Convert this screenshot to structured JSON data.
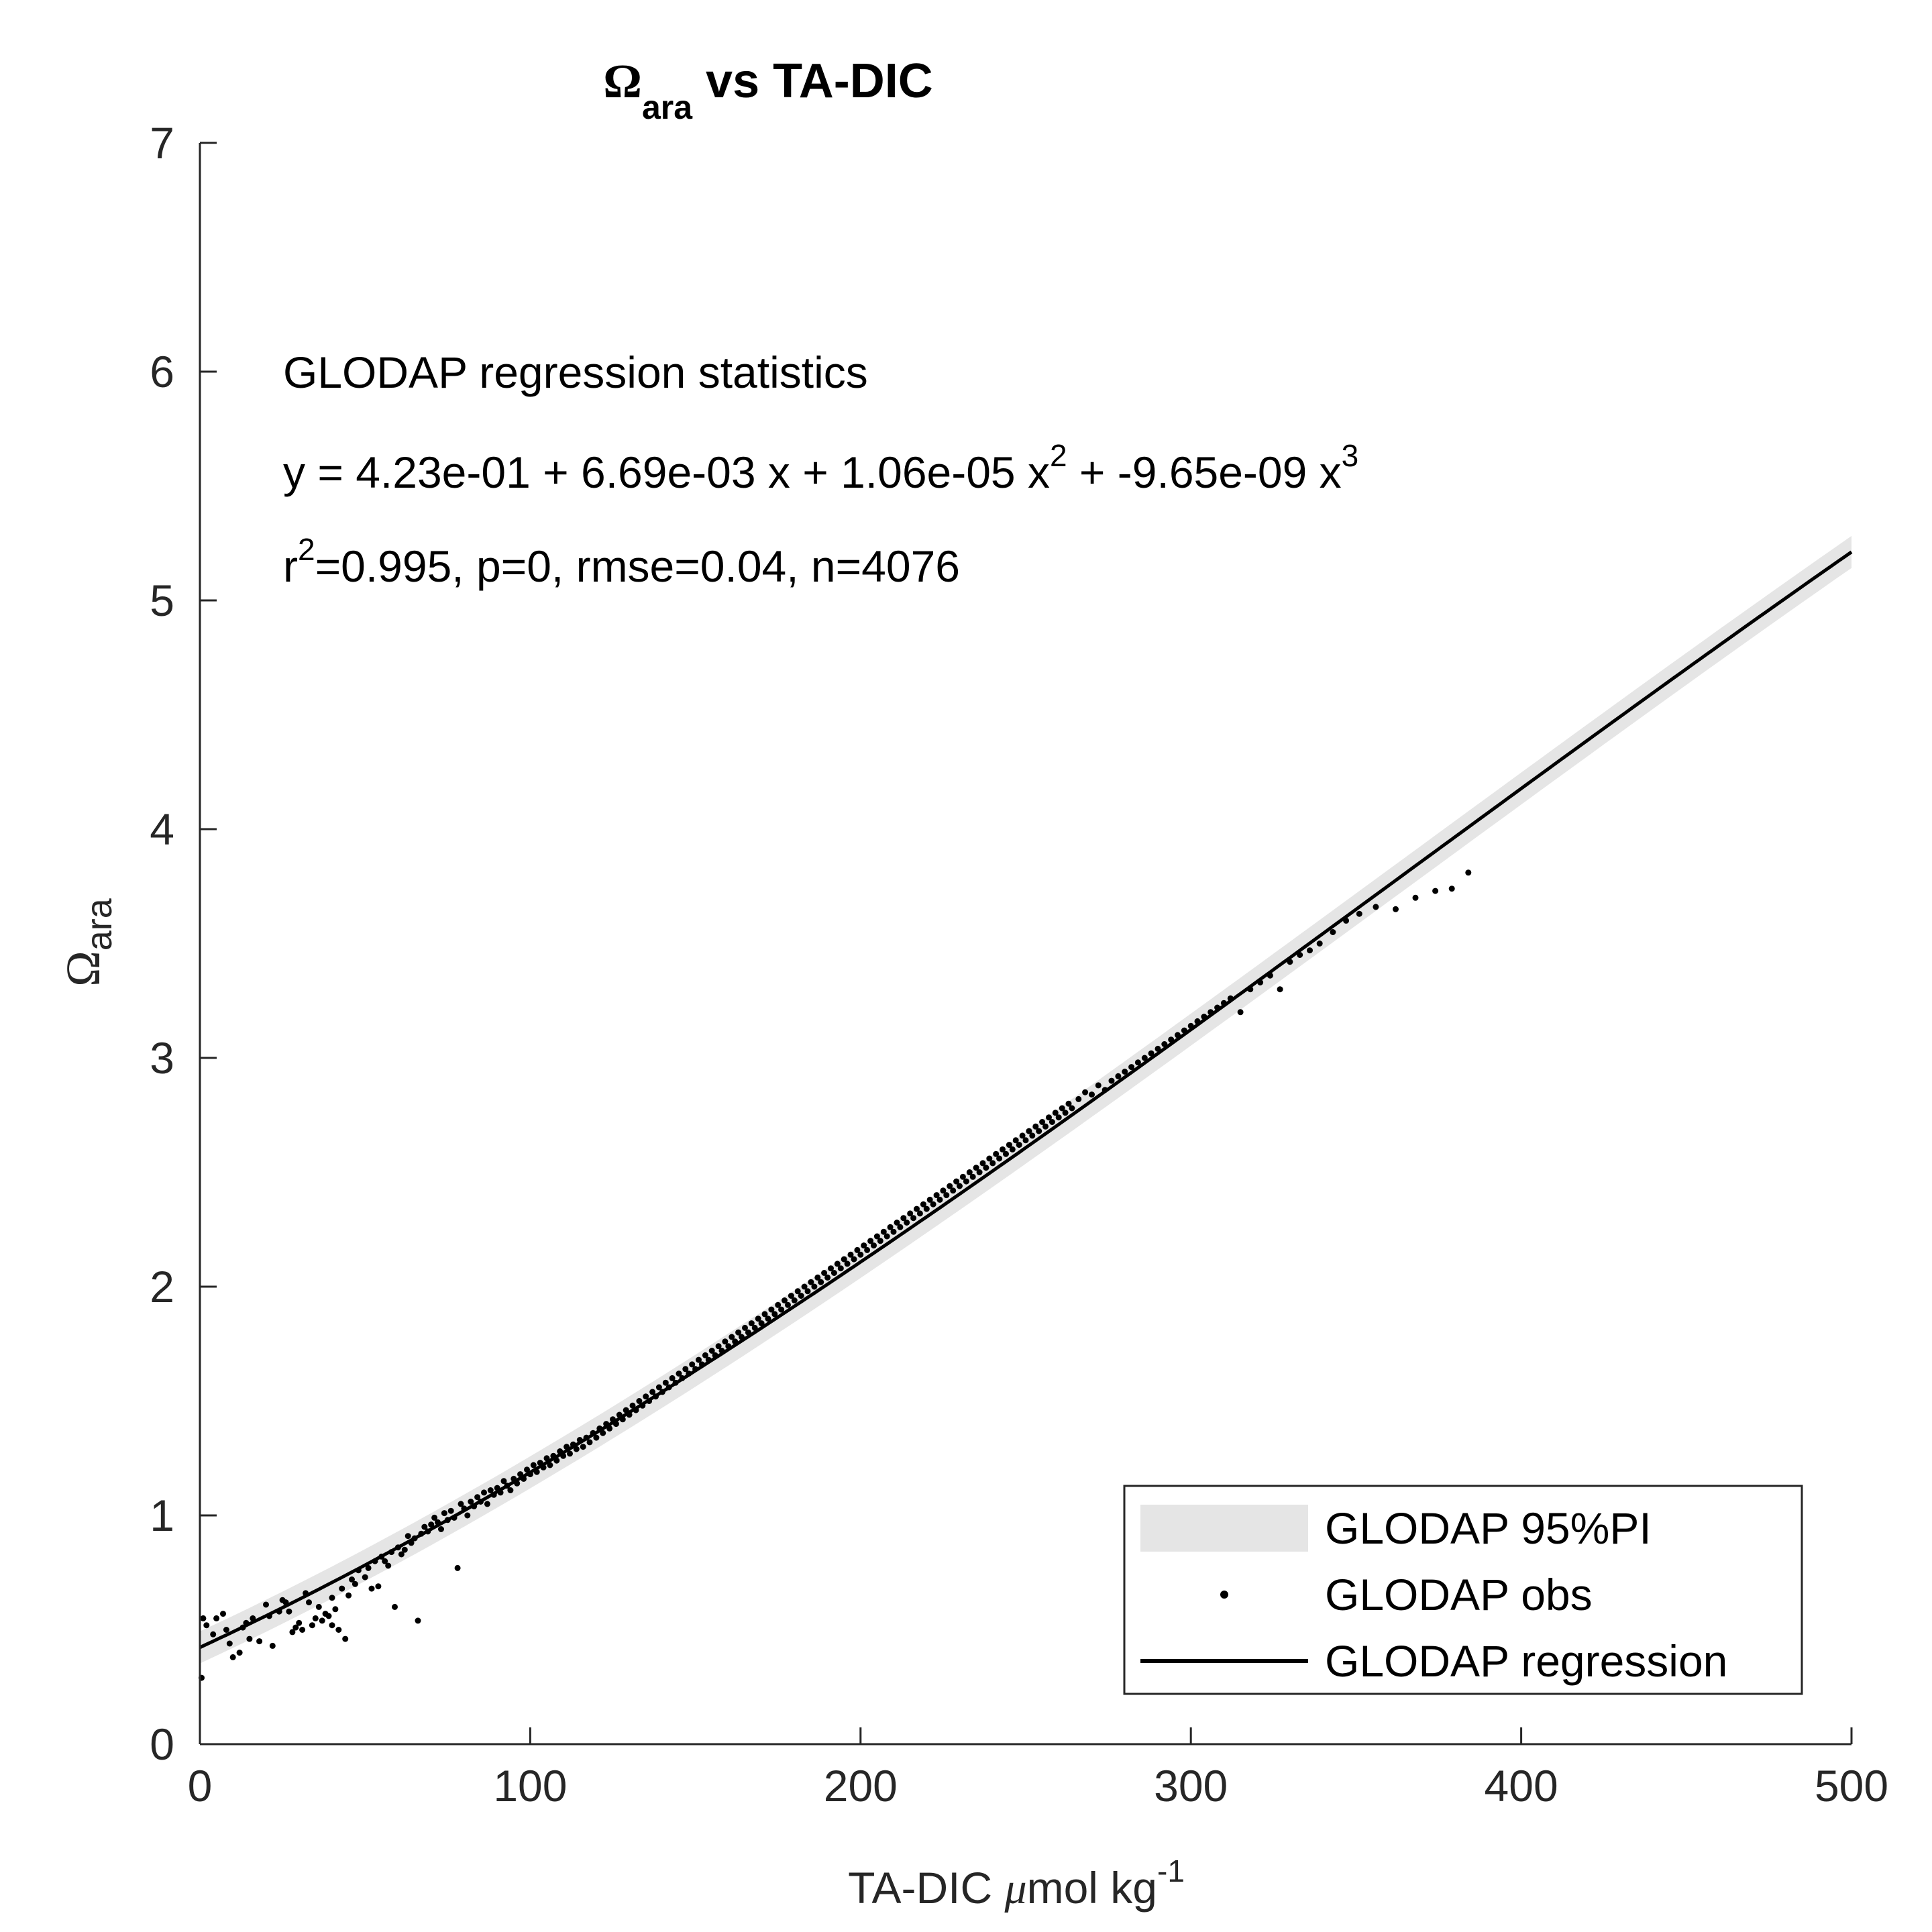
{
  "chart_data": {
    "type": "scatter",
    "title": {
      "symbol": "Ω",
      "subscript": "ara",
      "rest": " vs TA-DIC"
    },
    "xlabel": {
      "text": "TA-DIC ",
      "mu": "μ",
      "unit": "mol kg",
      "exponent": "-1"
    },
    "ylabel": {
      "symbol": "Ω",
      "subscript": "ara"
    },
    "xlim": [
      0,
      500
    ],
    "ylim": [
      0,
      7
    ],
    "xticks": [
      "0",
      "100",
      "200",
      "300",
      "400",
      "500"
    ],
    "yticks": [
      "0",
      "1",
      "2",
      "3",
      "4",
      "5",
      "6",
      "7"
    ],
    "grid": false,
    "annotation": {
      "heading": "GLODAP regression statistics",
      "equation": {
        "part1": "y = 4.23e-01 + 6.69e-03 x + 1.06e-05 x",
        "sup1": "2",
        "part2": " + -9.65e-09 x",
        "sup2": "3"
      },
      "stats": {
        "prefix": "r",
        "sup": "2",
        "rest": "=0.995, p=0, rmse=0.04, n=4076"
      }
    },
    "regression": {
      "name": "GLODAP regression",
      "coefficients": [
        0.423,
        0.00669,
        1.06e-05,
        -9.65e-09
      ],
      "x_range": [
        0,
        500
      ],
      "color": "#000000"
    },
    "prediction_interval": {
      "name": "GLODAP 95%PI",
      "half_width": 0.07,
      "color": "#e5e5e5"
    },
    "series": [
      {
        "name": "GLODAP obs",
        "color": "#000000",
        "points": [
          [
            0.5,
            0.29
          ],
          [
            1,
            0.55
          ],
          [
            2,
            0.52
          ],
          [
            4,
            0.48
          ],
          [
            5,
            0.55
          ],
          [
            7,
            0.57
          ],
          [
            8,
            0.5
          ],
          [
            9,
            0.44
          ],
          [
            10,
            0.38
          ],
          [
            12,
            0.4
          ],
          [
            13,
            0.51
          ],
          [
            14,
            0.53
          ],
          [
            15,
            0.46
          ],
          [
            16,
            0.55
          ],
          [
            18,
            0.45
          ],
          [
            20,
            0.61
          ],
          [
            21,
            0.56
          ],
          [
            22,
            0.43
          ],
          [
            24,
            0.58
          ],
          [
            25,
            0.63
          ],
          [
            26,
            0.62
          ],
          [
            27,
            0.58
          ],
          [
            28,
            0.49
          ],
          [
            29,
            0.51
          ],
          [
            30,
            0.53
          ],
          [
            31,
            0.5
          ],
          [
            32,
            0.66
          ],
          [
            33,
            0.62
          ],
          [
            34,
            0.52
          ],
          [
            35,
            0.55
          ],
          [
            36,
            0.6
          ],
          [
            37,
            0.54
          ],
          [
            38,
            0.57
          ],
          [
            39,
            0.56
          ],
          [
            40,
            0.64
          ],
          [
            40,
            0.52
          ],
          [
            41,
            0.59
          ],
          [
            42,
            0.5
          ],
          [
            43,
            0.68
          ],
          [
            44,
            0.46
          ],
          [
            45,
            0.65
          ],
          [
            46,
            0.72
          ],
          [
            47,
            0.7
          ],
          [
            48,
            0.76
          ],
          [
            50,
            0.73
          ],
          [
            51,
            0.77
          ],
          [
            52,
            0.68
          ],
          [
            53,
            0.8
          ],
          [
            54,
            0.69
          ],
          [
            55,
            0.82
          ],
          [
            56,
            0.8
          ],
          [
            57,
            0.78
          ],
          [
            58,
            0.84
          ],
          [
            59,
            0.6
          ],
          [
            60,
            0.86
          ],
          [
            61,
            0.83
          ],
          [
            62,
            0.85
          ],
          [
            63,
            0.91
          ],
          [
            64,
            0.88
          ],
          [
            65,
            0.9
          ],
          [
            66,
            0.54
          ],
          [
            67,
            0.92
          ],
          [
            68,
            0.95
          ],
          [
            69,
            0.93
          ],
          [
            70,
            0.96
          ],
          [
            71,
            0.99
          ],
          [
            72,
            0.97
          ],
          [
            73,
            0.94
          ],
          [
            74,
            1.01
          ],
          [
            75,
            0.98
          ],
          [
            76,
            1.02
          ],
          [
            77,
            0.99
          ],
          [
            78,
            0.77
          ],
          [
            79,
            1.05
          ],
          [
            80,
            1.03
          ],
          [
            81,
            1.0
          ],
          [
            82,
            1.06
          ],
          [
            83,
            1.04
          ],
          [
            84,
            1.08
          ],
          [
            85,
            1.06
          ],
          [
            86,
            1.1
          ],
          [
            87,
            1.05
          ],
          [
            88,
            1.11
          ],
          [
            89,
            1.09
          ],
          [
            90,
            1.12
          ],
          [
            91,
            1.1
          ],
          [
            92,
            1.15
          ],
          [
            93,
            1.13
          ],
          [
            94,
            1.11
          ],
          [
            95,
            1.16
          ],
          [
            96,
            1.14
          ],
          [
            97,
            1.18
          ],
          [
            98,
            1.16
          ],
          [
            99,
            1.2
          ],
          [
            100,
            1.18
          ],
          [
            101,
            1.22
          ],
          [
            102,
            1.19
          ],
          [
            103,
            1.23
          ],
          [
            104,
            1.21
          ],
          [
            105,
            1.25
          ],
          [
            106,
            1.22
          ],
          [
            107,
            1.26
          ],
          [
            108,
            1.24
          ],
          [
            109,
            1.28
          ],
          [
            110,
            1.26
          ],
          [
            111,
            1.3
          ],
          [
            112,
            1.27
          ],
          [
            113,
            1.31
          ],
          [
            114,
            1.29
          ],
          [
            115,
            1.33
          ],
          [
            116,
            1.3
          ],
          [
            117,
            1.34
          ],
          [
            118,
            1.32
          ],
          [
            119,
            1.36
          ],
          [
            120,
            1.34
          ],
          [
            121,
            1.38
          ],
          [
            122,
            1.36
          ],
          [
            123,
            1.4
          ],
          [
            124,
            1.38
          ],
          [
            125,
            1.42
          ],
          [
            126,
            1.4
          ],
          [
            127,
            1.44
          ],
          [
            128,
            1.42
          ],
          [
            129,
            1.46
          ],
          [
            130,
            1.44
          ],
          [
            131,
            1.48
          ],
          [
            132,
            1.46
          ],
          [
            133,
            1.5
          ],
          [
            134,
            1.48
          ],
          [
            135,
            1.52
          ],
          [
            136,
            1.5
          ],
          [
            137,
            1.54
          ],
          [
            138,
            1.52
          ],
          [
            139,
            1.56
          ],
          [
            140,
            1.54
          ],
          [
            141,
            1.58
          ],
          [
            142,
            1.56
          ],
          [
            143,
            1.6
          ],
          [
            144,
            1.58
          ],
          [
            145,
            1.62
          ],
          [
            146,
            1.6
          ],
          [
            147,
            1.64
          ],
          [
            148,
            1.62
          ],
          [
            149,
            1.66
          ],
          [
            150,
            1.64
          ],
          [
            151,
            1.68
          ],
          [
            152,
            1.66
          ],
          [
            153,
            1.7
          ],
          [
            154,
            1.68
          ],
          [
            155,
            1.72
          ],
          [
            156,
            1.7
          ],
          [
            157,
            1.74
          ],
          [
            158,
            1.72
          ],
          [
            159,
            1.76
          ],
          [
            160,
            1.74
          ],
          [
            161,
            1.78
          ],
          [
            162,
            1.76
          ],
          [
            163,
            1.8
          ],
          [
            164,
            1.78
          ],
          [
            165,
            1.82
          ],
          [
            166,
            1.8
          ],
          [
            167,
            1.84
          ],
          [
            168,
            1.82
          ],
          [
            169,
            1.86
          ],
          [
            170,
            1.84
          ],
          [
            171,
            1.88
          ],
          [
            172,
            1.86
          ],
          [
            173,
            1.9
          ],
          [
            174,
            1.88
          ],
          [
            175,
            1.92
          ],
          [
            176,
            1.9
          ],
          [
            177,
            1.94
          ],
          [
            178,
            1.92
          ],
          [
            179,
            1.96
          ],
          [
            180,
            1.94
          ],
          [
            181,
            1.98
          ],
          [
            182,
            1.96
          ],
          [
            183,
            2.0
          ],
          [
            184,
            1.98
          ],
          [
            185,
            2.02
          ],
          [
            186,
            2.0
          ],
          [
            187,
            2.04
          ],
          [
            188,
            2.02
          ],
          [
            189,
            2.06
          ],
          [
            190,
            2.04
          ],
          [
            191,
            2.08
          ],
          [
            192,
            2.06
          ],
          [
            193,
            2.1
          ],
          [
            194,
            2.08
          ],
          [
            195,
            2.12
          ],
          [
            196,
            2.1
          ],
          [
            197,
            2.14
          ],
          [
            198,
            2.12
          ],
          [
            199,
            2.16
          ],
          [
            200,
            2.14
          ],
          [
            201,
            2.18
          ],
          [
            202,
            2.16
          ],
          [
            203,
            2.2
          ],
          [
            204,
            2.18
          ],
          [
            205,
            2.22
          ],
          [
            206,
            2.2
          ],
          [
            207,
            2.24
          ],
          [
            208,
            2.22
          ],
          [
            209,
            2.26
          ],
          [
            210,
            2.24
          ],
          [
            211,
            2.28
          ],
          [
            212,
            2.26
          ],
          [
            213,
            2.3
          ],
          [
            214,
            2.28
          ],
          [
            215,
            2.32
          ],
          [
            216,
            2.3
          ],
          [
            217,
            2.34
          ],
          [
            218,
            2.32
          ],
          [
            219,
            2.36
          ],
          [
            220,
            2.34
          ],
          [
            221,
            2.38
          ],
          [
            222,
            2.36
          ],
          [
            223,
            2.4
          ],
          [
            224,
            2.38
          ],
          [
            225,
            2.42
          ],
          [
            226,
            2.4
          ],
          [
            227,
            2.44
          ],
          [
            228,
            2.42
          ],
          [
            229,
            2.46
          ],
          [
            230,
            2.44
          ],
          [
            231,
            2.48
          ],
          [
            232,
            2.46
          ],
          [
            233,
            2.5
          ],
          [
            234,
            2.48
          ],
          [
            235,
            2.52
          ],
          [
            236,
            2.5
          ],
          [
            237,
            2.54
          ],
          [
            238,
            2.52
          ],
          [
            239,
            2.56
          ],
          [
            240,
            2.54
          ],
          [
            241,
            2.58
          ],
          [
            242,
            2.56
          ],
          [
            243,
            2.6
          ],
          [
            244,
            2.58
          ],
          [
            245,
            2.62
          ],
          [
            246,
            2.6
          ],
          [
            247,
            2.64
          ],
          [
            248,
            2.62
          ],
          [
            249,
            2.66
          ],
          [
            250,
            2.64
          ],
          [
            251,
            2.68
          ],
          [
            252,
            2.66
          ],
          [
            253,
            2.7
          ],
          [
            254,
            2.68
          ],
          [
            255,
            2.72
          ],
          [
            256,
            2.7
          ],
          [
            257,
            2.74
          ],
          [
            258,
            2.72
          ],
          [
            259,
            2.76
          ],
          [
            260,
            2.74
          ],
          [
            261,
            2.78
          ],
          [
            262,
            2.76
          ],
          [
            263,
            2.8
          ],
          [
            264,
            2.78
          ],
          [
            266,
            2.82
          ],
          [
            268,
            2.85
          ],
          [
            270,
            2.84
          ],
          [
            272,
            2.88
          ],
          [
            274,
            2.86
          ],
          [
            276,
            2.9
          ],
          [
            278,
            2.92
          ],
          [
            280,
            2.94
          ],
          [
            282,
            2.96
          ],
          [
            284,
            2.98
          ],
          [
            286,
            3.0
          ],
          [
            288,
            3.02
          ],
          [
            290,
            3.04
          ],
          [
            292,
            3.06
          ],
          [
            294,
            3.08
          ],
          [
            296,
            3.1
          ],
          [
            298,
            3.12
          ],
          [
            300,
            3.14
          ],
          [
            302,
            3.16
          ],
          [
            304,
            3.18
          ],
          [
            306,
            3.2
          ],
          [
            308,
            3.22
          ],
          [
            310,
            3.24
          ],
          [
            312,
            3.26
          ],
          [
            315,
            3.2
          ],
          [
            318,
            3.3
          ],
          [
            321,
            3.33
          ],
          [
            324,
            3.36
          ],
          [
            327,
            3.3
          ],
          [
            330,
            3.42
          ],
          [
            333,
            3.45
          ],
          [
            336,
            3.47
          ],
          [
            339,
            3.5
          ],
          [
            343,
            3.55
          ],
          [
            347,
            3.6
          ],
          [
            351,
            3.63
          ],
          [
            356,
            3.66
          ],
          [
            362,
            3.65
          ],
          [
            368,
            3.7
          ],
          [
            374,
            3.73
          ],
          [
            379,
            3.74
          ],
          [
            384,
            3.81
          ]
        ]
      }
    ],
    "legend": {
      "position": "bottom-right",
      "entries": [
        "GLODAP 95%PI",
        "GLODAP obs",
        "GLODAP regression"
      ]
    }
  }
}
